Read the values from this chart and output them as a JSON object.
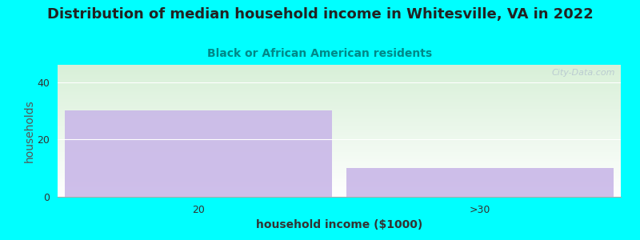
{
  "title": "Distribution of median household income in Whitesville, VA in 2022",
  "subtitle": "Black or African American residents",
  "categories": [
    "20",
    ">30"
  ],
  "values": [
    30,
    10
  ],
  "bar_color": "#c9b8e8",
  "bar_color_alpha": 0.9,
  "xlabel": "household income ($1000)",
  "ylabel": "households",
  "ylim": [
    0,
    46
  ],
  "yticks": [
    0,
    20,
    40
  ],
  "background_color": "#00ffff",
  "plot_bg_top": "#d8f0d8",
  "plot_bg_bottom": "#ffffff",
  "title_fontsize": 13,
  "subtitle_fontsize": 10,
  "axis_label_fontsize": 10,
  "tick_fontsize": 9,
  "title_color": "#222222",
  "subtitle_color": "#008888",
  "watermark": "City-Data.com"
}
